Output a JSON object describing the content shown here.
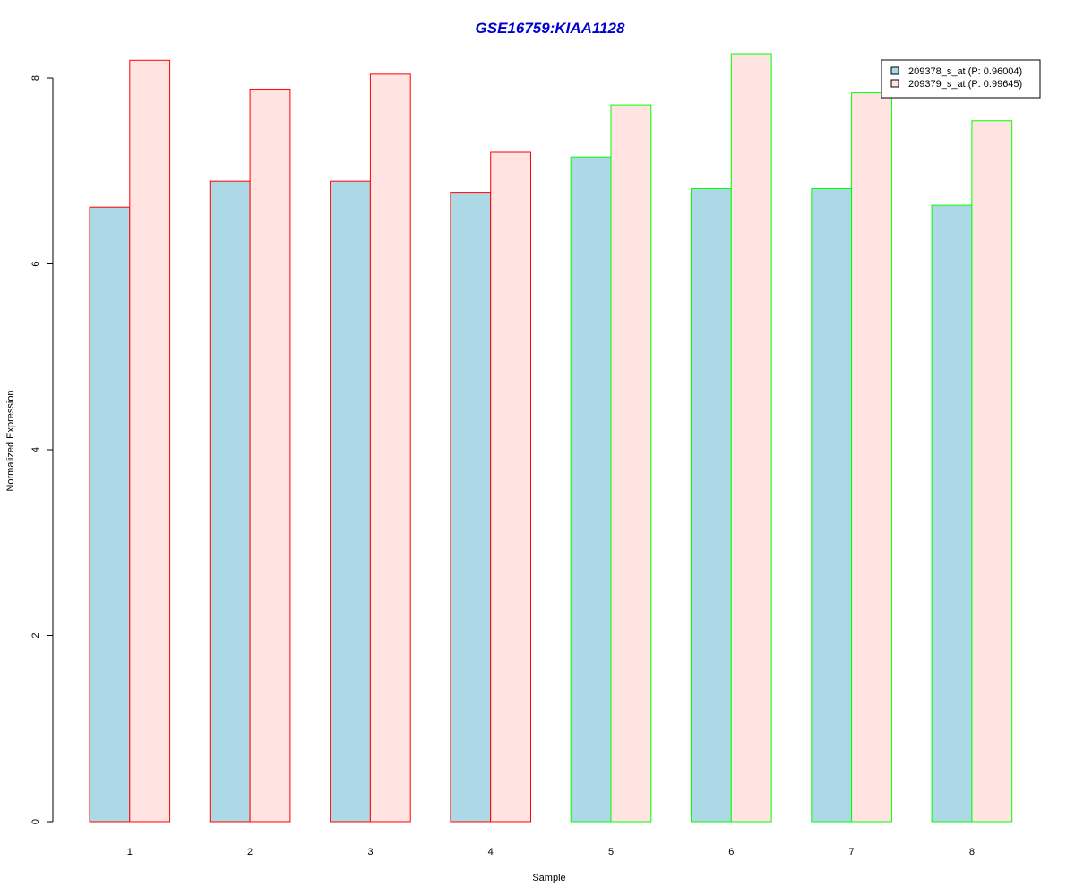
{
  "chart_data": {
    "type": "bar",
    "title": "GSE16759:KIAA1128",
    "title_color": "#0000CC",
    "xlabel": "Sample",
    "ylabel": "Normalized Expression",
    "categories": [
      "1",
      "2",
      "3",
      "4",
      "5",
      "6",
      "7",
      "8"
    ],
    "ylim": [
      0,
      8.4
    ],
    "yticks": [
      0,
      2,
      4,
      6,
      8
    ],
    "grid": false,
    "legend_position": "top-right",
    "series": [
      {
        "name": "209378_s_at (P: 0.96004)",
        "fill": "#ADD8E6",
        "values": [
          6.61,
          6.89,
          6.89,
          6.77,
          7.15,
          6.81,
          6.81,
          6.63
        ]
      },
      {
        "name": "209379_s_at (P: 0.99645)",
        "fill": "#FFE4E1",
        "values": [
          8.19,
          7.88,
          8.04,
          7.2,
          7.71,
          8.26,
          7.84,
          7.54
        ]
      }
    ],
    "group_border_colors": [
      "#FF0000",
      "#FF0000",
      "#FF0000",
      "#FF0000",
      "#00FF00",
      "#00FF00",
      "#00FF00",
      "#00FF00"
    ],
    "axis_color": "#000000",
    "legend_border_color": "#000000"
  }
}
